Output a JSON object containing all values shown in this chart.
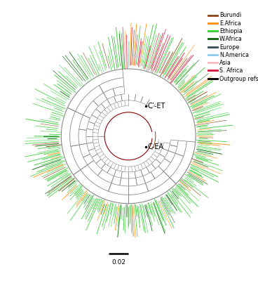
{
  "legend_entries": [
    {
      "label": "Burundi",
      "color": "#8B4513"
    },
    {
      "label": "E.Africa",
      "color": "#FF8C00"
    },
    {
      "label": "Ethiopia",
      "color": "#32CD32"
    },
    {
      "label": "W.Africa",
      "color": "#006400"
    },
    {
      "label": "Europe",
      "color": "#2F4F4F"
    },
    {
      "label": "N.America",
      "color": "#87CEEB"
    },
    {
      "label": "Asia",
      "color": "#FFB6C1"
    },
    {
      "label": "S. Africa",
      "color": "#DC143C"
    },
    {
      "label": "Outgroup refs",
      "color": "#000000"
    }
  ],
  "scale_bar_label": "0.02",
  "annotation_CET": "C’-ET",
  "annotation_CEA": "C-EA",
  "background_color": "#ffffff",
  "tree_colors": {
    "ethiopia": "#32CD32",
    "burundi": "#8B4513",
    "e_africa": "#FF8C00",
    "w_africa": "#006400",
    "europe": "#2F4F4F",
    "n_america": "#87CEEB",
    "asia": "#FFB6C1",
    "s_africa": "#DC143C",
    "outgroup": "#000000",
    "internal": "#888888"
  },
  "fig_width": 3.68,
  "fig_height": 4.0,
  "dpi": 100
}
